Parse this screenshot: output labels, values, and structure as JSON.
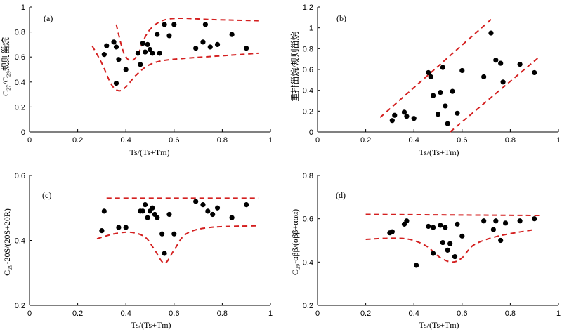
{
  "chart_data": [
    {
      "type": "scatter",
      "panel_label": "(a)",
      "xlabel": "Ts/(Ts+Tm)",
      "ylabel": "C₂₇/C₂₉规则甾烷",
      "xlim": [
        0,
        1
      ],
      "ylim": [
        0,
        1
      ],
      "xticks": [
        0,
        0.2,
        0.4,
        0.6,
        0.8,
        1
      ],
      "yticks": [
        0,
        0.2,
        0.4,
        0.6,
        0.8,
        1
      ],
      "x_tick_labels": [
        "0",
        "0.2",
        "0.4",
        "0.6",
        "0.8",
        "1"
      ],
      "y_tick_labels": [
        "0",
        "0.2",
        "0.4",
        "0.6",
        "0.8",
        "1"
      ],
      "grid": false,
      "points": [
        [
          0.31,
          0.62
        ],
        [
          0.32,
          0.69
        ],
        [
          0.35,
          0.72
        ],
        [
          0.36,
          0.68
        ],
        [
          0.36,
          0.39
        ],
        [
          0.37,
          0.58
        ],
        [
          0.4,
          0.5
        ],
        [
          0.45,
          0.63
        ],
        [
          0.46,
          0.54
        ],
        [
          0.47,
          0.71
        ],
        [
          0.48,
          0.64
        ],
        [
          0.49,
          0.7
        ],
        [
          0.5,
          0.66
        ],
        [
          0.51,
          0.63
        ],
        [
          0.53,
          0.78
        ],
        [
          0.54,
          0.63
        ],
        [
          0.56,
          0.86
        ],
        [
          0.58,
          0.77
        ],
        [
          0.6,
          0.86
        ],
        [
          0.69,
          0.67
        ],
        [
          0.72,
          0.72
        ],
        [
          0.73,
          0.86
        ],
        [
          0.75,
          0.68
        ],
        [
          0.78,
          0.7
        ],
        [
          0.84,
          0.78
        ],
        [
          0.9,
          0.67
        ]
      ],
      "envelopes": [
        [
          [
            0.26,
            0.69
          ],
          [
            0.3,
            0.55
          ],
          [
            0.34,
            0.38
          ],
          [
            0.37,
            0.33
          ],
          [
            0.4,
            0.36
          ],
          [
            0.44,
            0.45
          ],
          [
            0.49,
            0.53
          ],
          [
            0.55,
            0.57
          ],
          [
            0.65,
            0.59
          ],
          [
            0.8,
            0.61
          ],
          [
            0.95,
            0.63
          ]
        ],
        [
          [
            0.36,
            0.86
          ],
          [
            0.39,
            0.64
          ],
          [
            0.42,
            0.57
          ],
          [
            0.45,
            0.62
          ],
          [
            0.47,
            0.72
          ],
          [
            0.5,
            0.82
          ],
          [
            0.55,
            0.89
          ],
          [
            0.62,
            0.91
          ],
          [
            0.75,
            0.9
          ],
          [
            0.95,
            0.89
          ]
        ]
      ]
    },
    {
      "type": "scatter",
      "panel_label": "(b)",
      "xlabel": "Ts/(Ts+Tm)",
      "ylabel": "重排甾烷/规则甾烷",
      "xlim": [
        0,
        1
      ],
      "ylim": [
        0,
        1.2
      ],
      "xticks": [
        0,
        0.2,
        0.4,
        0.6,
        0.8,
        1
      ],
      "yticks": [
        0,
        0.2,
        0.4,
        0.6,
        0.8,
        1,
        1.2
      ],
      "x_tick_labels": [
        "0",
        "0.2",
        "0.4",
        "0.6",
        "0.8",
        "1"
      ],
      "y_tick_labels": [
        "0",
        "0.2",
        "0.4",
        "0.6",
        "0.8",
        "1",
        "1.2"
      ],
      "grid": false,
      "points": [
        [
          0.31,
          0.11
        ],
        [
          0.32,
          0.16
        ],
        [
          0.36,
          0.19
        ],
        [
          0.37,
          0.15
        ],
        [
          0.4,
          0.13
        ],
        [
          0.46,
          0.57
        ],
        [
          0.47,
          0.53
        ],
        [
          0.48,
          0.35
        ],
        [
          0.5,
          0.17
        ],
        [
          0.51,
          0.38
        ],
        [
          0.52,
          0.62
        ],
        [
          0.53,
          0.25
        ],
        [
          0.54,
          0.08
        ],
        [
          0.56,
          0.39
        ],
        [
          0.58,
          0.18
        ],
        [
          0.6,
          0.59
        ],
        [
          0.69,
          0.53
        ],
        [
          0.72,
          0.95
        ],
        [
          0.74,
          0.69
        ],
        [
          0.76,
          0.66
        ],
        [
          0.77,
          0.48
        ],
        [
          0.84,
          0.65
        ],
        [
          0.9,
          0.57
        ]
      ],
      "envelopes": [
        [
          [
            0.26,
            0.14
          ],
          [
            0.72,
            1.08
          ]
        ],
        [
          [
            0.55,
            0.0
          ],
          [
            0.92,
            0.72
          ]
        ]
      ]
    },
    {
      "type": "scatter",
      "panel_label": "(c)",
      "xlabel": "Ts/(Ts+Tm)",
      "ylabel": "C₂₉-20S/(20S+20R)",
      "xlim": [
        0,
        1
      ],
      "ylim": [
        0.2,
        0.6
      ],
      "xticks": [
        0,
        0.2,
        0.4,
        0.6,
        0.8,
        1
      ],
      "yticks": [
        0.2,
        0.4,
        0.6
      ],
      "x_tick_labels": [
        "0",
        "0.2",
        "0.4",
        "0.6",
        "0.8",
        "1"
      ],
      "y_tick_labels": [
        "0.2",
        "0.4",
        "0.6"
      ],
      "grid": false,
      "points": [
        [
          0.3,
          0.43
        ],
        [
          0.31,
          0.49
        ],
        [
          0.37,
          0.44
        ],
        [
          0.4,
          0.44
        ],
        [
          0.46,
          0.49
        ],
        [
          0.47,
          0.49
        ],
        [
          0.48,
          0.51
        ],
        [
          0.49,
          0.47
        ],
        [
          0.5,
          0.49
        ],
        [
          0.51,
          0.5
        ],
        [
          0.52,
          0.48
        ],
        [
          0.53,
          0.47
        ],
        [
          0.55,
          0.42
        ],
        [
          0.56,
          0.36
        ],
        [
          0.58,
          0.48
        ],
        [
          0.6,
          0.42
        ],
        [
          0.69,
          0.52
        ],
        [
          0.72,
          0.51
        ],
        [
          0.74,
          0.49
        ],
        [
          0.76,
          0.48
        ],
        [
          0.78,
          0.5
        ],
        [
          0.84,
          0.47
        ],
        [
          0.9,
          0.51
        ]
      ],
      "envelopes": [
        [
          [
            0.32,
            0.53
          ],
          [
            0.95,
            0.53
          ]
        ],
        [
          [
            0.28,
            0.405
          ],
          [
            0.35,
            0.42
          ],
          [
            0.42,
            0.425
          ],
          [
            0.48,
            0.41
          ],
          [
            0.52,
            0.37
          ],
          [
            0.56,
            0.33
          ],
          [
            0.6,
            0.37
          ],
          [
            0.65,
            0.42
          ],
          [
            0.75,
            0.44
          ],
          [
            0.95,
            0.445
          ]
        ]
      ]
    },
    {
      "type": "scatter",
      "panel_label": "(d)",
      "xlabel": "Ts/(Ts+Tm)",
      "ylabel": "C₂₉-αββ/(αββ+ααα)",
      "xlim": [
        0,
        1
      ],
      "ylim": [
        0.2,
        0.8
      ],
      "xticks": [
        0,
        0.2,
        0.4,
        0.6,
        0.8,
        1
      ],
      "yticks": [
        0.2,
        0.4,
        0.6,
        0.8
      ],
      "x_tick_labels": [
        "0",
        "0.2",
        "0.4",
        "0.6",
        "0.8",
        "1"
      ],
      "y_tick_labels": [
        "0.2",
        "0.4",
        "0.6",
        "0.8"
      ],
      "grid": false,
      "points": [
        [
          0.3,
          0.535
        ],
        [
          0.31,
          0.54
        ],
        [
          0.36,
          0.575
        ],
        [
          0.37,
          0.59
        ],
        [
          0.41,
          0.385
        ],
        [
          0.46,
          0.565
        ],
        [
          0.48,
          0.56
        ],
        [
          0.48,
          0.44
        ],
        [
          0.51,
          0.57
        ],
        [
          0.52,
          0.49
        ],
        [
          0.53,
          0.56
        ],
        [
          0.54,
          0.455
        ],
        [
          0.55,
          0.485
        ],
        [
          0.57,
          0.425
        ],
        [
          0.58,
          0.575
        ],
        [
          0.6,
          0.52
        ],
        [
          0.69,
          0.59
        ],
        [
          0.73,
          0.55
        ],
        [
          0.74,
          0.59
        ],
        [
          0.76,
          0.5
        ],
        [
          0.78,
          0.58
        ],
        [
          0.84,
          0.59
        ],
        [
          0.9,
          0.6
        ]
      ],
      "envelopes": [
        [
          [
            0.2,
            0.62
          ],
          [
            0.92,
            0.615
          ]
        ],
        [
          [
            0.2,
            0.505
          ],
          [
            0.3,
            0.51
          ],
          [
            0.38,
            0.505
          ],
          [
            0.45,
            0.475
          ],
          [
            0.51,
            0.42
          ],
          [
            0.56,
            0.4
          ],
          [
            0.6,
            0.42
          ],
          [
            0.65,
            0.48
          ],
          [
            0.75,
            0.52
          ],
          [
            0.9,
            0.55
          ]
        ]
      ]
    }
  ],
  "colors": {
    "envelope": "#d42020",
    "point": "#000000",
    "axis": "#000000"
  }
}
